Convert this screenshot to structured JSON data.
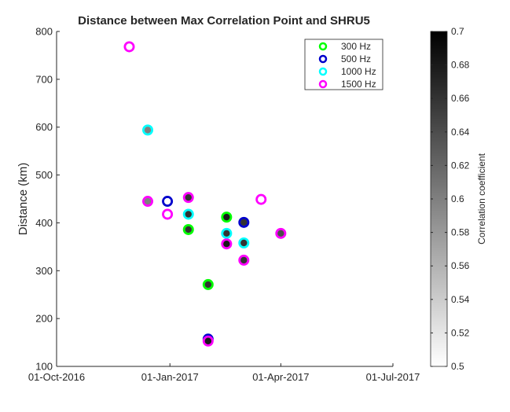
{
  "chart_data": {
    "type": "scatter",
    "title": "Distance between Max Correlation Point and SHRU5",
    "ylabel": "Distance (km)",
    "xlabel": "",
    "x_axis_type": "date",
    "xlim": [
      "2016-10-01",
      "2017-07-01"
    ],
    "ylim": [
      100,
      800
    ],
    "xticks": [
      "01-Oct-2016",
      "01-Jan-2017",
      "01-Apr-2017",
      "01-Jul-2017"
    ],
    "xtick_dates": [
      "2016-10-01",
      "2017-01-01",
      "2017-04-01",
      "2017-07-01"
    ],
    "yticks": [
      100,
      200,
      300,
      400,
      500,
      600,
      700,
      800
    ],
    "grid": false,
    "legend_position": "top-right",
    "marker_fill_encodes": "Correlation coefficient",
    "series": [
      {
        "name": "300 Hz",
        "edge_color": "#00ff00",
        "points": [
          {
            "x": "2017-01-16",
            "y": 386,
            "c": 0.66
          },
          {
            "x": "2017-02-16",
            "y": 412,
            "c": 0.68
          },
          {
            "x": "2017-02-01",
            "y": 271,
            "c": 0.66
          }
        ]
      },
      {
        "name": "500 Hz",
        "edge_color": "#0000cc",
        "points": [
          {
            "x": "2016-12-30",
            "y": 445,
            "c": 0.5
          },
          {
            "x": "2017-03-02",
            "y": 401,
            "c": 0.66
          },
          {
            "x": "2017-02-01",
            "y": 157,
            "c": 0.66
          }
        ]
      },
      {
        "name": "1000 Hz",
        "edge_color": "#00ffff",
        "points": [
          {
            "x": "2016-12-14",
            "y": 594,
            "c": 0.6
          },
          {
            "x": "2017-01-16",
            "y": 418,
            "c": 0.66
          },
          {
            "x": "2017-02-16",
            "y": 378,
            "c": 0.66
          },
          {
            "x": "2017-03-02",
            "y": 358,
            "c": 0.66
          }
        ]
      },
      {
        "name": "1500 Hz",
        "edge_color": "#ff00ff",
        "points": [
          {
            "x": "2016-11-29",
            "y": 768,
            "c": 0.5
          },
          {
            "x": "2016-12-14",
            "y": 445,
            "c": 0.6
          },
          {
            "x": "2016-12-30",
            "y": 418,
            "c": 0.5
          },
          {
            "x": "2017-01-16",
            "y": 453,
            "c": 0.66
          },
          {
            "x": "2017-02-16",
            "y": 356,
            "c": 0.68
          },
          {
            "x": "2017-03-02",
            "y": 322,
            "c": 0.66
          },
          {
            "x": "2017-03-16",
            "y": 449,
            "c": 0.5
          },
          {
            "x": "2017-04-01",
            "y": 378,
            "c": 0.64
          },
          {
            "x": "2017-02-01",
            "y": 153,
            "c": 0.68
          }
        ]
      }
    ],
    "colorbar": {
      "label": "Correlation coefficient",
      "range": [
        0.5,
        0.7
      ],
      "ticks": [
        "0.5",
        "0.52",
        "0.54",
        "0.56",
        "0.58",
        "0.6",
        "0.62",
        "0.64",
        "0.66",
        "0.68",
        "0.7"
      ],
      "colormap": "gray reversed (white = 0.5, black = 0.7)"
    }
  }
}
